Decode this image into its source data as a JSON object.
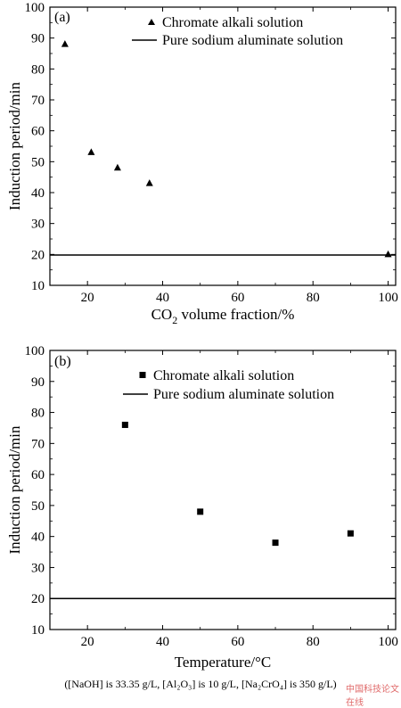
{
  "chart_data": [
    {
      "type": "scatter",
      "panel_tag": "(a)",
      "xlabel_main": "CO",
      "xlabel_sub": "2",
      "xlabel_rest": " volume fraction/%",
      "ylabel": "Induction period/min",
      "xlim": [
        10,
        102
      ],
      "ylim": [
        10,
        100
      ],
      "xticks": [
        "20",
        "40",
        "60",
        "80",
        "100"
      ],
      "xtick_values": [
        20,
        40,
        60,
        80,
        100
      ],
      "yticks": [
        "10",
        "20",
        "30",
        "40",
        "50",
        "60",
        "70",
        "80",
        "90",
        "100"
      ],
      "ytick_values": [
        10,
        20,
        30,
        40,
        50,
        60,
        70,
        80,
        90,
        100
      ],
      "legend_position": "top-right",
      "series": [
        {
          "name": "Chromate alkali solution",
          "marker": "triangle",
          "x": [
            14,
            21,
            28,
            36.5,
            100
          ],
          "y": [
            88,
            53,
            48,
            43,
            20
          ]
        },
        {
          "name": "Pure sodium aluminate solution",
          "marker": "line",
          "hline": 19.8
        }
      ]
    },
    {
      "type": "scatter",
      "panel_tag": "(b)",
      "xlabel": "Temperature/°C",
      "ylabel": "Induction period/min",
      "xlim": [
        10,
        102
      ],
      "ylim": [
        10,
        100
      ],
      "xticks": [
        "20",
        "40",
        "60",
        "80",
        "100"
      ],
      "xtick_values": [
        20,
        40,
        60,
        80,
        100
      ],
      "yticks": [
        "10",
        "20",
        "30",
        "40",
        "50",
        "60",
        "70",
        "80",
        "90",
        "100"
      ],
      "ytick_values": [
        10,
        20,
        30,
        40,
        50,
        60,
        70,
        80,
        90,
        100
      ],
      "legend_position": "top-right",
      "series": [
        {
          "name": "Chromate alkali solution",
          "marker": "square",
          "x": [
            30,
            50,
            70,
            90
          ],
          "y": [
            76,
            48,
            38,
            41
          ]
        },
        {
          "name": "Pure sodium aluminate solution",
          "marker": "line",
          "hline": 20
        }
      ]
    }
  ],
  "caption": "([NaOH]  is  33.35  g/L,  [Al₂O₃]  is  10  g/L,  [Na₂CrO₄] is 350 g/L)",
  "watermark": "中国科技论文在线"
}
